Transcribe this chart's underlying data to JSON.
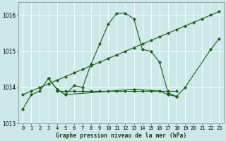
{
  "title": "Graphe pression niveau de la mer (hPa)",
  "bg_color": "#cce8e8",
  "line_color": "#1a5c1a",
  "x_labels": [
    "0",
    "1",
    "2",
    "3",
    "4",
    "5",
    "6",
    "7",
    "8",
    "9",
    "10",
    "11",
    "12",
    "13",
    "14",
    "15",
    "16",
    "17",
    "18",
    "19",
    "20",
    "21",
    "22",
    "23"
  ],
  "series_main": [
    1013.4,
    1013.8,
    1013.9,
    1014.25,
    1013.95,
    1013.8,
    1014.05,
    1014.0,
    1014.65,
    1015.2,
    1015.75,
    1016.05,
    1016.05,
    1015.9,
    1015.05,
    1015.0,
    1014.7,
    1013.85,
    1013.75,
    1014.0,
    null,
    null,
    1015.05,
    1015.35
  ],
  "series_trend": [
    1013.8,
    1013.9,
    1014.0,
    1014.1,
    1014.2,
    1014.3,
    1014.4,
    1014.5,
    1014.6,
    1014.7,
    1014.8,
    1014.9,
    1015.0,
    1015.1,
    1015.2,
    1015.3,
    1015.4,
    1015.5,
    1015.6,
    1015.7,
    1015.8,
    1015.9,
    1016.0,
    1016.1
  ],
  "series_flat": [
    null,
    null,
    null,
    1014.25,
    1013.95,
    1013.8,
    null,
    null,
    null,
    null,
    null,
    null,
    null,
    1013.95,
    null,
    null,
    1013.9,
    1013.8,
    1013.75,
    null,
    null,
    null,
    null,
    null
  ],
  "series_hline": [
    null,
    null,
    null,
    null,
    1013.9,
    1013.9,
    1013.9,
    1013.9,
    1013.9,
    1013.9,
    1013.9,
    1013.9,
    1013.9,
    1013.9,
    1013.9,
    1013.9,
    1013.9,
    1013.9,
    1013.9,
    null,
    null,
    null,
    null,
    null
  ],
  "ylim": [
    1013.0,
    1016.35
  ],
  "yticks": [
    1013,
    1014,
    1015,
    1016
  ],
  "figsize": [
    3.2,
    2.0
  ],
  "dpi": 100
}
